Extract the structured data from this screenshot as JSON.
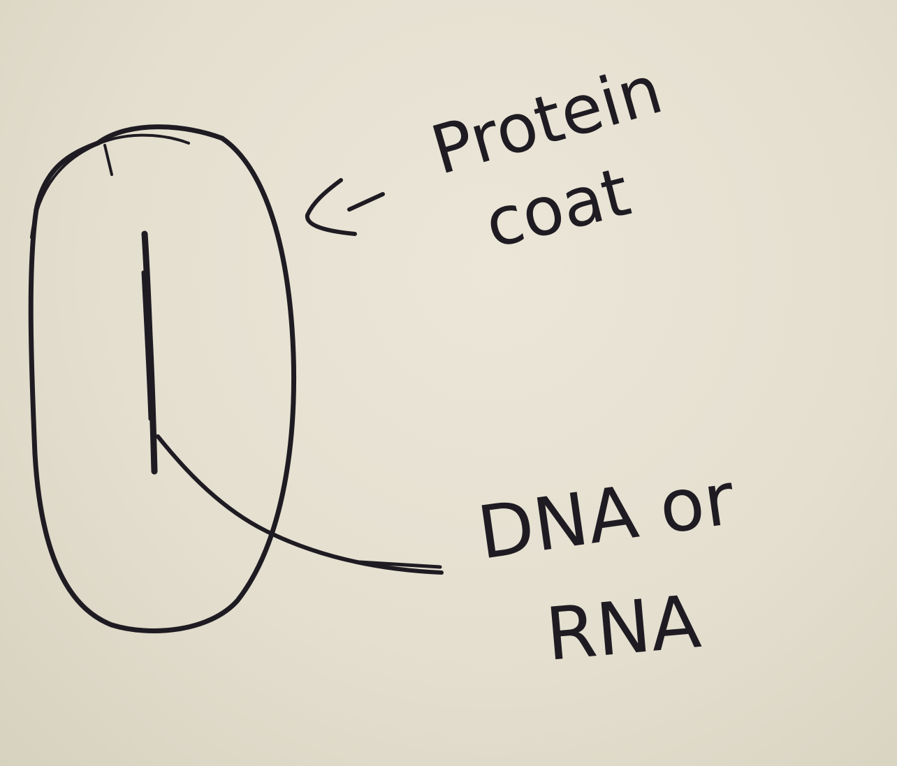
{
  "diagram": {
    "labels": {
      "protein_coat_line1": "Protein",
      "protein_coat_line2": "coat",
      "nucleic_acid_line1": "DNA or",
      "nucleic_acid_line2": "RNA"
    },
    "ink_color": "#1f1b22",
    "paper_color": "#e6e0d0"
  }
}
